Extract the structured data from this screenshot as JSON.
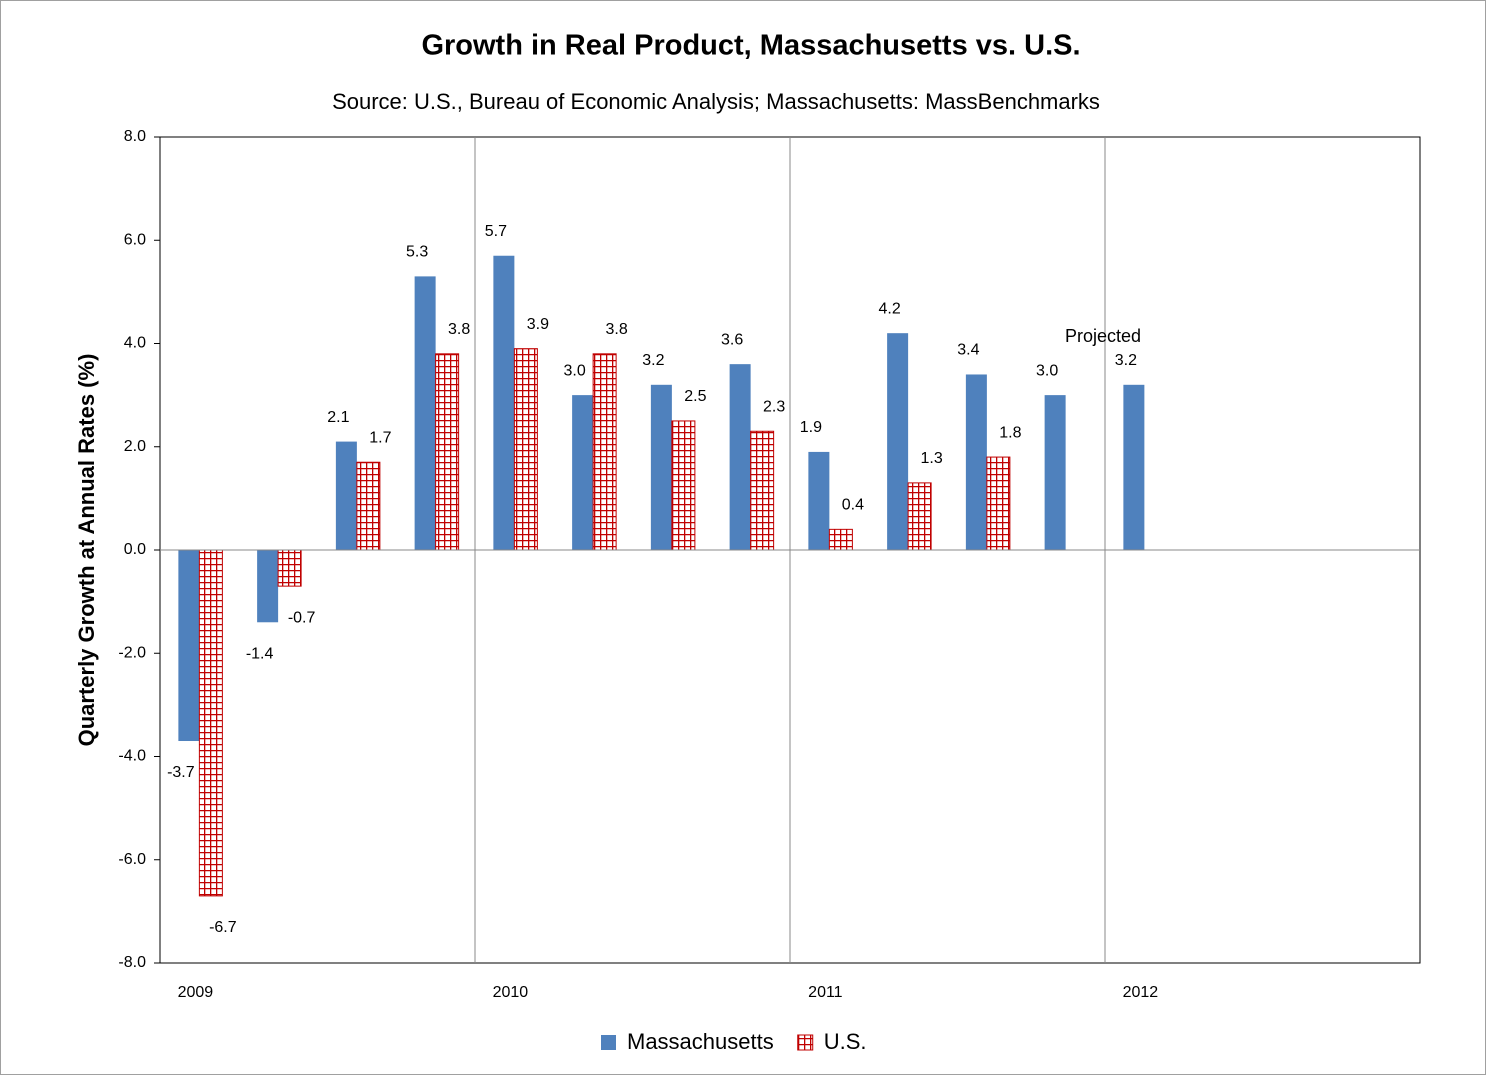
{
  "chart_data": {
    "type": "bar",
    "title": "Growth in Real Product, Massachusetts vs. U.S.",
    "subtitle": "Source: U.S., Bureau of Economic Analysis; Massachusetts: MassBenchmarks",
    "y_label": "Quarterly Growth at Annual Rates (%)",
    "annotation": "Projected",
    "categories": [
      "2009",
      null,
      null,
      null,
      "2010",
      null,
      null,
      null,
      "2011",
      null,
      null,
      null,
      "2012",
      null,
      null,
      null
    ],
    "series": [
      {
        "name": "Massachusetts",
        "color": "#4f81bd",
        "values": [
          -3.7,
          -1.4,
          2.1,
          5.3,
          5.7,
          3.0,
          3.2,
          3.6,
          1.9,
          4.2,
          3.4,
          3.0,
          3.2,
          null,
          null,
          null
        ],
        "value_labels": [
          "-3.7",
          "-1.4",
          "2.1",
          "5.3",
          "5.7",
          "3.0",
          "3.2",
          "3.6",
          "1.9",
          "4.2",
          "3.4",
          "3.0",
          "3.2",
          null,
          null,
          null
        ]
      },
      {
        "name": "U.S.",
        "color": "#c00000",
        "values": [
          -6.7,
          -0.7,
          1.7,
          3.8,
          3.9,
          3.8,
          2.5,
          2.3,
          0.4,
          1.3,
          1.8,
          null,
          null,
          null,
          null,
          null
        ],
        "value_labels": [
          "-6.7",
          "-0.7",
          "1.7",
          "3.8",
          "3.9",
          "3.8",
          "2.5",
          "2.3",
          "0.4",
          "1.3",
          "1.8",
          null,
          null,
          null,
          null,
          null
        ]
      }
    ],
    "ylim": [
      -8,
      8
    ],
    "yticks": [
      {
        "value": -8,
        "label": "-8.0"
      },
      {
        "value": -6,
        "label": "-6.0"
      },
      {
        "value": -4,
        "label": "-4.0"
      },
      {
        "value": -2,
        "label": "-2.0"
      },
      {
        "value": 0,
        "label": "0.0"
      },
      {
        "value": 2,
        "label": "2.0"
      },
      {
        "value": 4,
        "label": "4.0"
      },
      {
        "value": 6,
        "label": "6.0"
      },
      {
        "value": 8,
        "label": "8.0"
      }
    ],
    "legend": "bottom"
  }
}
